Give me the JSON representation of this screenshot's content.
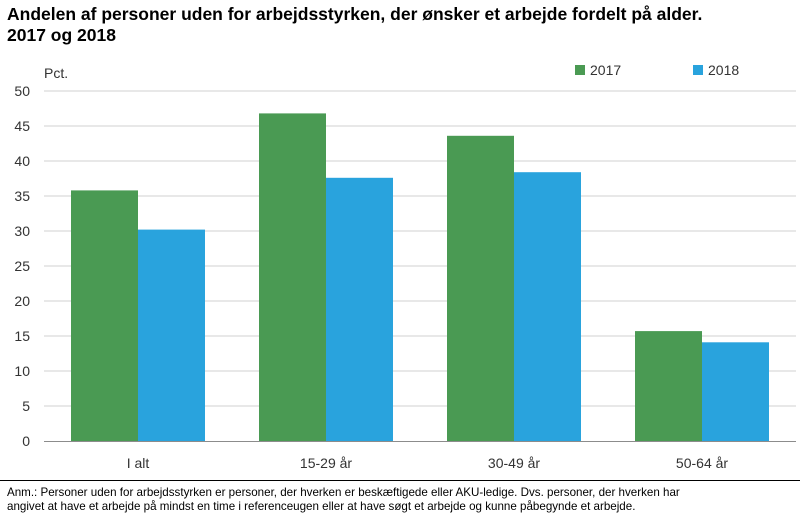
{
  "title_line1": "Andelen af personer uden for arbejdsstyrken, der ønsker et arbejde fordelt på alder.",
  "title_line2": "2017 og 2018",
  "footnote": "Anm.: Personer uden for arbejdsstyrken er personer, der hverken er beskæftigede eller AKU-ledige. Dvs. personer, der hverken har\nangivet at have et arbejde på mindst en time i referenceugen eller at have søgt et arbejde og kunne påbegynde et arbejde.",
  "chart_data": {
    "type": "bar",
    "title": "",
    "xlabel": "",
    "ylabel": "Pct.",
    "categories": [
      "I alt",
      "15-29 år",
      "30-49 år",
      "50-64 år"
    ],
    "series": [
      {
        "name": "2017",
        "color": "#4a9a53",
        "values": [
          35.8,
          46.8,
          43.6,
          15.7
        ]
      },
      {
        "name": "2018",
        "color": "#29a3dd",
        "values": [
          30.2,
          37.6,
          38.4,
          14.1
        ]
      }
    ],
    "ylim": [
      0,
      50
    ],
    "yticks": [
      0,
      5,
      10,
      15,
      20,
      25,
      30,
      35,
      40,
      45,
      50
    ],
    "grid": true,
    "legend": "top-right"
  }
}
